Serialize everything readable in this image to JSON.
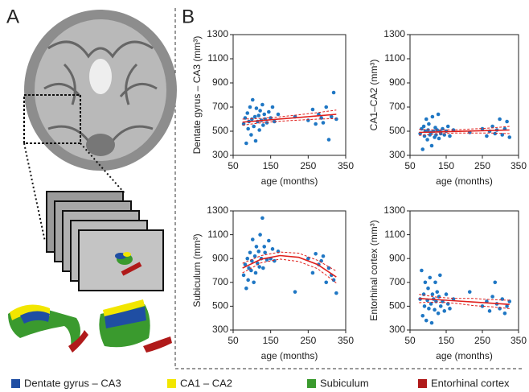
{
  "panels": {
    "a": "A",
    "b": "B"
  },
  "legend": [
    {
      "name": "Dentate gyrus – CA3",
      "color": "#1f4ea3"
    },
    {
      "name": "CA1 – CA2",
      "color": "#f2e600"
    },
    {
      "name": "Subiculum",
      "color": "#3a9a2e"
    },
    {
      "name": "Entorhinal cortex",
      "color": "#b01a1a"
    }
  ],
  "chart_data": [
    {
      "type": "scatter",
      "ylabel": "Dentate gyrus – CA3 (mm³)",
      "xlabel": "age (months)",
      "xlim": [
        50,
        350
      ],
      "ylim": [
        300,
        1300
      ],
      "xticks": [
        50,
        150,
        250,
        350
      ],
      "yticks": [
        300,
        500,
        700,
        900,
        1100,
        1300
      ],
      "points": {
        "color": "#1f77c4",
        "x": [
          78,
          82,
          85,
          88,
          90,
          92,
          95,
          98,
          100,
          102,
          105,
          108,
          110,
          112,
          115,
          118,
          120,
          122,
          125,
          128,
          130,
          133,
          135,
          140,
          145,
          150,
          155,
          160,
          170,
          215,
          250,
          262,
          270,
          278,
          285,
          290,
          298,
          305,
          312,
          318,
          325
        ],
        "values": [
          560,
          610,
          400,
          650,
          520,
          580,
          700,
          470,
          600,
          760,
          540,
          620,
          420,
          690,
          580,
          630,
          510,
          670,
          590,
          720,
          550,
          640,
          600,
          570,
          660,
          610,
          700,
          580,
          640,
          620,
          590,
          680,
          560,
          640,
          610,
          570,
          700,
          430,
          620,
          820,
          600
        ]
      },
      "fit": {
        "color": "#e0201c",
        "x": [
          75,
          125,
          175,
          225,
          275,
          325
        ],
        "values": [
          575,
          588,
          601,
          614,
          627,
          640
        ],
        "lower": [
          550,
          570,
          583,
          592,
          600,
          605
        ],
        "upper": [
          600,
          606,
          619,
          636,
          654,
          675
        ]
      }
    },
    {
      "type": "scatter",
      "ylabel": "CA1–CA2 (mm³)",
      "xlabel": "age (months)",
      "xlim": [
        50,
        350
      ],
      "ylim": [
        300,
        1300
      ],
      "xticks": [
        50,
        150,
        250,
        350
      ],
      "yticks": [
        300,
        500,
        700,
        900,
        1100,
        1300
      ],
      "points": {
        "color": "#1f77c4",
        "x": [
          78,
          82,
          85,
          88,
          90,
          92,
          95,
          98,
          100,
          102,
          105,
          108,
          110,
          112,
          115,
          118,
          120,
          122,
          125,
          128,
          130,
          133,
          135,
          140,
          145,
          150,
          155,
          160,
          170,
          215,
          250,
          262,
          270,
          278,
          285,
          290,
          298,
          305,
          312,
          318,
          325
        ],
        "values": [
          480,
          520,
          350,
          540,
          460,
          500,
          600,
          430,
          510,
          560,
          470,
          490,
          380,
          620,
          500,
          450,
          530,
          470,
          510,
          640,
          440,
          500,
          480,
          520,
          470,
          500,
          540,
          460,
          510,
          490,
          520,
          460,
          500,
          540,
          480,
          510,
          600,
          470,
          520,
          580,
          450
        ]
      },
      "fit": {
        "color": "#e0201c",
        "x": [
          75,
          125,
          175,
          225,
          275,
          325
        ],
        "values": [
          490,
          494,
          498,
          502,
          506,
          510
        ],
        "lower": [
          465,
          478,
          485,
          485,
          485,
          480
        ],
        "upper": [
          515,
          510,
          511,
          519,
          527,
          540
        ]
      }
    },
    {
      "type": "scatter",
      "ylabel": "Subiculum (mm³)",
      "xlabel": "age (months)",
      "xlim": [
        50,
        350
      ],
      "ylim": [
        300,
        1300
      ],
      "xticks": [
        50,
        150,
        250,
        350
      ],
      "yticks": [
        300,
        500,
        700,
        900,
        1100,
        1300
      ],
      "points": {
        "color": "#1f77c4",
        "x": [
          78,
          82,
          85,
          88,
          90,
          92,
          95,
          98,
          100,
          102,
          105,
          108,
          110,
          112,
          115,
          118,
          120,
          122,
          125,
          128,
          130,
          133,
          135,
          140,
          145,
          150,
          155,
          160,
          170,
          215,
          250,
          262,
          270,
          278,
          285,
          290,
          298,
          305,
          312,
          318,
          325
        ],
        "values": [
          760,
          850,
          650,
          900,
          720,
          820,
          950,
          800,
          880,
          1060,
          700,
          920,
          780,
          1000,
          860,
          960,
          830,
          1100,
          900,
          1240,
          820,
          1000,
          950,
          890,
          1050,
          900,
          980,
          880,
          960,
          620,
          900,
          780,
          940,
          850,
          880,
          920,
          700,
          820,
          760,
          720,
          610
        ]
      },
      "fit": {
        "color": "#e0201c",
        "x": [
          75,
          125,
          175,
          225,
          275,
          325
        ],
        "values": [
          820,
          895,
          925,
          910,
          850,
          745
        ],
        "lower": [
          780,
          865,
          895,
          875,
          815,
          695
        ],
        "upper": [
          860,
          925,
          955,
          945,
          885,
          795
        ]
      }
    },
    {
      "type": "scatter",
      "ylabel": "Entorhinal cortex (mm³)",
      "xlabel": "age (months)",
      "xlim": [
        50,
        350
      ],
      "ylim": [
        300,
        1300
      ],
      "xticks": [
        50,
        150,
        250,
        350
      ],
      "yticks": [
        300,
        500,
        700,
        900,
        1100,
        1300
      ],
      "points": {
        "color": "#1f77c4",
        "x": [
          78,
          82,
          85,
          88,
          90,
          92,
          95,
          98,
          100,
          102,
          105,
          108,
          110,
          112,
          115,
          118,
          120,
          122,
          125,
          128,
          130,
          133,
          135,
          140,
          145,
          150,
          155,
          160,
          170,
          215,
          250,
          262,
          270,
          278,
          285,
          290,
          298,
          305,
          312,
          318,
          325
        ],
        "values": [
          560,
          800,
          420,
          600,
          500,
          700,
          380,
          550,
          650,
          480,
          740,
          520,
          360,
          600,
          560,
          470,
          700,
          540,
          620,
          440,
          580,
          760,
          500,
          540,
          460,
          600,
          520,
          480,
          560,
          620,
          500,
          540,
          460,
          580,
          700,
          520,
          480,
          560,
          440,
          500,
          540
        ]
      },
      "fit": {
        "color": "#e0201c",
        "x": [
          75,
          125,
          175,
          225,
          275,
          325
        ],
        "values": [
          565,
          555,
          545,
          535,
          525,
          515
        ],
        "lower": [
          530,
          535,
          525,
          505,
          495,
          480
        ],
        "upper": [
          600,
          575,
          565,
          565,
          555,
          550
        ]
      }
    }
  ]
}
